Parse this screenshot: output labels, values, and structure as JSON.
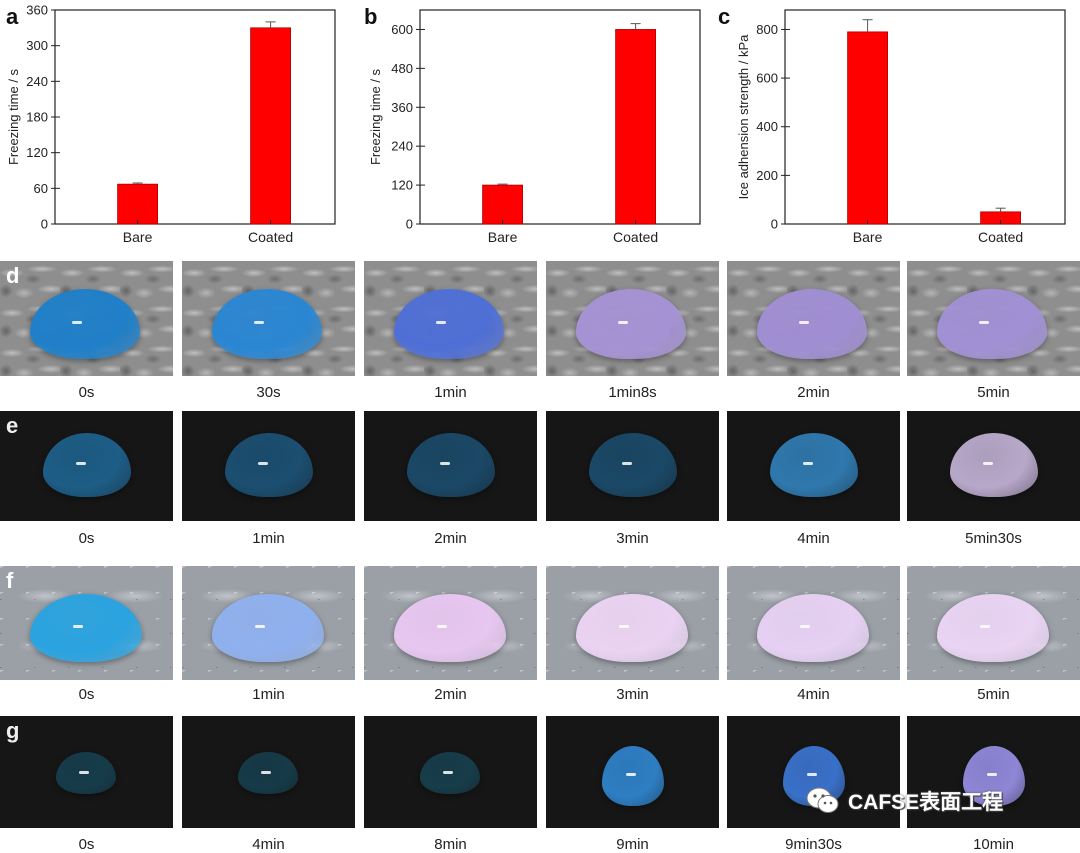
{
  "chart_data": [
    {
      "panel": "a",
      "type": "bar",
      "categories": [
        "Bare",
        "Coated"
      ],
      "values": [
        67,
        330
      ],
      "errors": [
        2,
        10
      ],
      "ylabel": "Freezing time / s",
      "xlabel": "",
      "ylim": [
        0,
        360
      ],
      "yticks": [
        0,
        60,
        120,
        180,
        240,
        300,
        360
      ],
      "bar_color": "#ff0000",
      "grid": false
    },
    {
      "panel": "b",
      "type": "bar",
      "categories": [
        "Bare",
        "Coated"
      ],
      "values": [
        120,
        600
      ],
      "errors": [
        3,
        18
      ],
      "ylabel": "Freezing time / s",
      "xlabel": "",
      "ylim": [
        0,
        660
      ],
      "yticks": [
        0,
        120,
        240,
        360,
        480,
        600
      ],
      "bar_color": "#ff0000",
      "grid": false
    },
    {
      "panel": "c",
      "type": "bar",
      "categories": [
        "Bare",
        "Coated"
      ],
      "values": [
        790,
        50
      ],
      "errors": [
        50,
        15
      ],
      "ylabel": "Ice adhension strength / kPa",
      "xlabel": "",
      "ylim": [
        0,
        880
      ],
      "yticks": [
        0,
        200,
        400,
        600,
        800
      ],
      "bar_color": "#ff0000",
      "grid": false
    }
  ],
  "photo_rows": [
    {
      "letter": "d",
      "theme": "bark",
      "captions": [
        "0s",
        "30s",
        "1min",
        "1min8s",
        "2min",
        "5min"
      ],
      "drop_colors": [
        "#1f7fc8",
        "#2a86d2",
        "#4f6fd6",
        "#a592d4",
        "#a08ed3",
        "#a190d4"
      ]
    },
    {
      "letter": "e",
      "theme": "dark",
      "captions": [
        "0s",
        "1min",
        "2min",
        "3min",
        "4min",
        "5min30s"
      ],
      "drop_colors": [
        "#1d5d86",
        "#1b4e70",
        "#1a4866",
        "#1a4866",
        "#2f78ad",
        "#b7a7c9"
      ]
    },
    {
      "letter": "f",
      "theme": "ice",
      "captions": [
        "0s",
        "1min",
        "2min",
        "3min",
        "4min",
        "5min"
      ],
      "drop_colors": [
        "#2aa3e0",
        "#8fb0ee",
        "#e7c6ef",
        "#ead3f2",
        "#e6d0f3",
        "#e9d4f3"
      ]
    },
    {
      "letter": "g",
      "theme": "dark",
      "captions": [
        "0s",
        "4min",
        "8min",
        "9min",
        "9min30s",
        "10min"
      ],
      "drop_colors": [
        "#163c4a",
        "#163a48",
        "#173c4a",
        "#2e7ec3",
        "#3970c8",
        "#8e86d6"
      ]
    }
  ],
  "watermark": {
    "text": "CAFSE表面工程"
  },
  "colors": {
    "bar": "#ff0000",
    "axis": "#222222"
  }
}
